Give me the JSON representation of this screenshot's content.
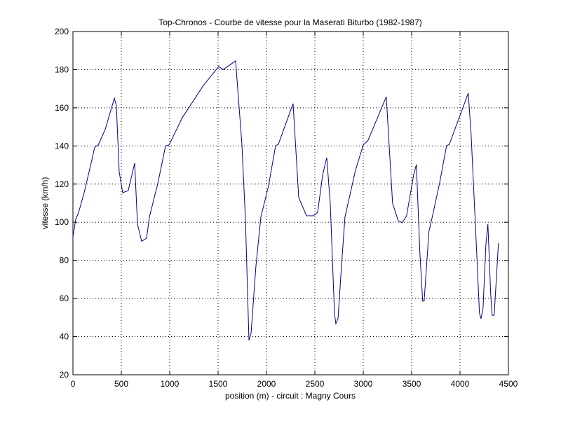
{
  "chart_data": {
    "type": "line",
    "title": "Top-Chronos - Courbe de vitesse pour la Maserati Biturbo (1982-1987)",
    "x_label": "position (m) - circuit : Magny Cours",
    "y_label": "vitesse (km/h)",
    "grid": true,
    "xlim": [
      0,
      4500
    ],
    "xticks": [
      0,
      500,
      1000,
      1500,
      2000,
      2500,
      3000,
      3500,
      4000,
      4500
    ],
    "ylim": [
      20,
      200
    ],
    "yticks": [
      20,
      40,
      60,
      80,
      100,
      120,
      140,
      160,
      180,
      200
    ],
    "series": [
      {
        "color": "#00008b",
        "x": [
          0,
          29,
          58,
          116,
          188,
          225,
          261,
          333,
          428,
          449,
          478,
          514,
          572,
          638,
          667,
          710,
          761,
          790,
          877,
          957,
          993,
          1130,
          1348,
          1507,
          1551,
          1681,
          1746,
          1783,
          1819,
          1841,
          1891,
          1942,
          2022,
          2094,
          2123,
          2275,
          2333,
          2413,
          2485,
          2529,
          2580,
          2623,
          2659,
          2703,
          2717,
          2739,
          2775,
          2811,
          2920,
          3000,
          3050,
          3238,
          3303,
          3361,
          3404,
          3448,
          3520,
          3549,
          3585,
          3614,
          3629,
          3679,
          3716,
          3788,
          3861,
          3890,
          4085,
          4114,
          4172,
          4201,
          4216,
          4238,
          4267,
          4288,
          4317,
          4332,
          4353,
          4397
        ],
        "values": [
          92.4,
          101.5,
          105,
          115.5,
          131,
          139.4,
          140.5,
          148.6,
          165,
          161,
          126.5,
          115.5,
          116.6,
          131,
          99,
          90,
          91.6,
          102.7,
          120.3,
          140,
          140.5,
          154.8,
          171.7,
          181.7,
          180,
          184.6,
          141,
          101,
          38,
          42,
          77,
          102.7,
          119.2,
          140.1,
          140.9,
          162.2,
          113,
          103.4,
          103.4,
          105.2,
          124.7,
          133.9,
          110,
          52,
          46.8,
          49.4,
          77,
          102.7,
          127.3,
          140.5,
          143,
          165.8,
          110,
          100.8,
          99.7,
          103.4,
          124.7,
          130.2,
          84.3,
          58.6,
          58.6,
          95.3,
          103.4,
          120.3,
          140.1,
          140.9,
          167.7,
          146.7,
          84.3,
          52.3,
          49.4,
          54.9,
          88,
          99,
          62.2,
          51.2,
          51.2,
          89
        ]
      }
    ]
  }
}
